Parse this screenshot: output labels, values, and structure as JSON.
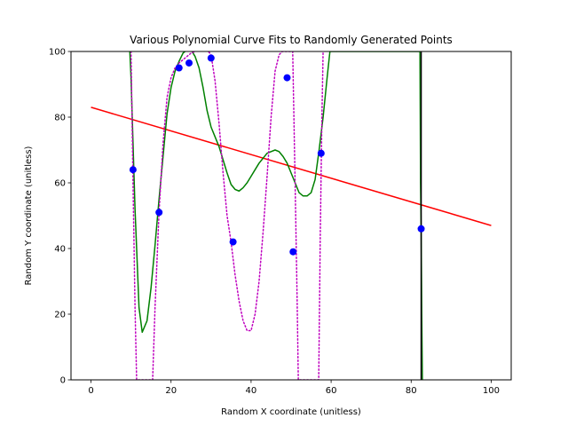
{
  "chart_data": {
    "type": "scatter",
    "title": "Various Polynomial Curve Fits to Randomly Generated Points",
    "xlabel": "Random X coordinate (unitless)",
    "ylabel": "Random Y coordinate (unitless)",
    "xlim": [
      -5,
      105
    ],
    "ylim": [
      0,
      100
    ],
    "xticks": [
      0,
      20,
      40,
      60,
      80,
      100
    ],
    "yticks": [
      0,
      20,
      40,
      60,
      80,
      100
    ],
    "grid": false,
    "legend": "none",
    "points": {
      "color": "#0000ff",
      "x": [
        10.5,
        17,
        22,
        24.5,
        30,
        35.5,
        49,
        50.5,
        57.5,
        82.5
      ],
      "y": [
        64,
        51,
        95,
        96.5,
        98,
        42,
        92,
        39,
        69,
        46
      ]
    },
    "series": [
      {
        "style": "solid",
        "color": "#ff0000",
        "x": [
          0,
          100
        ],
        "y": [
          83,
          47
        ]
      },
      {
        "style": "solid",
        "color": "#008000",
        "x": [
          9.7,
          10,
          10.5,
          11,
          12,
          12.8,
          14,
          15,
          16,
          17,
          18,
          19,
          20,
          21,
          22,
          23,
          24,
          25,
          26,
          27,
          28,
          29,
          30,
          31,
          32,
          33,
          34,
          35,
          36,
          37,
          38,
          39,
          40,
          41,
          42,
          43,
          44,
          45,
          46,
          47,
          48,
          49,
          50,
          51,
          52,
          53,
          54,
          55,
          56,
          57,
          58,
          59,
          59.7,
          82.2,
          82.35,
          82.5,
          82.65,
          82.8
        ],
        "y": [
          100,
          92,
          72,
          52,
          22,
          14.5,
          18,
          28,
          41,
          55,
          68,
          81,
          89,
          94,
          97,
          99.5,
          100.5,
          100.5,
          98.5,
          95,
          89,
          82,
          77,
          74,
          71,
          67,
          63,
          59.5,
          58,
          57.5,
          58.5,
          60,
          62,
          64,
          66,
          67.5,
          69,
          69.5,
          70,
          69.5,
          68,
          66,
          63,
          60,
          57,
          56,
          56,
          57,
          61,
          70,
          80,
          92,
          100,
          100,
          60,
          45,
          20,
          0
        ]
      },
      {
        "style": "dotted",
        "color": "#bf00bf",
        "x": [
          10,
          10.5,
          11,
          11.4,
          15.4,
          16,
          17,
          18,
          19,
          20,
          21,
          22,
          23,
          24,
          25,
          26,
          27,
          28,
          29,
          30,
          31,
          32,
          33,
          34,
          35,
          36,
          37,
          38,
          39,
          40,
          41,
          42,
          43,
          44,
          45,
          46,
          47,
          47.8,
          50.4,
          51,
          51.5,
          51.8,
          56.9,
          57.3,
          57.7,
          58
        ],
        "y": [
          100,
          60,
          22,
          0,
          0,
          22,
          51,
          72,
          86,
          92,
          95,
          96.5,
          97.5,
          98.5,
          99.5,
          100,
          100.5,
          100.5,
          100.5,
          99,
          91,
          78,
          63,
          50,
          42,
          32,
          24,
          18,
          15,
          15,
          20,
          30,
          45,
          62,
          80,
          94,
          99,
          100,
          100,
          60,
          25,
          0,
          0,
          45,
          80,
          100
        ]
      },
      {
        "style": "solid",
        "color": "#000000",
        "x": [
          82.5,
          82.5
        ],
        "y": [
          0,
          100
        ]
      }
    ]
  }
}
